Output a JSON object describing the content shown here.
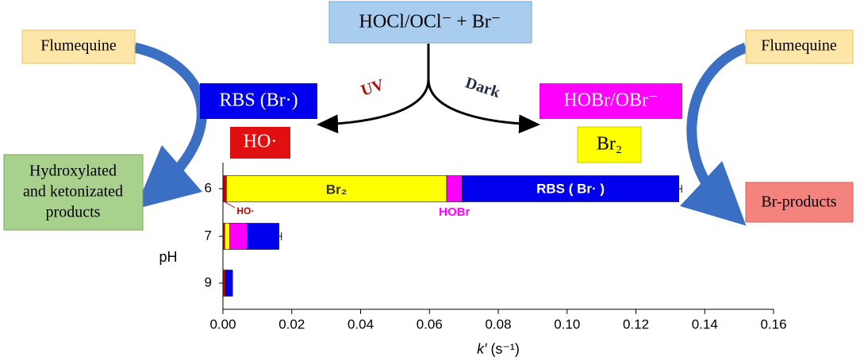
{
  "diagram": {
    "source": "HOCl/OCl⁻ + Br⁻",
    "flumequine_left": "Flumequine",
    "flumequine_right": "Flumequine",
    "rbs": "RBS (Br·)",
    "ho": "HO·",
    "hobr": "HOBr/OBr⁻",
    "br2": "Br₂",
    "uv": "UV",
    "dark": "Dark",
    "hydroxylated": [
      "Hydroxylated",
      "and ketonizated",
      "products"
    ],
    "br_products": "Br-products"
  },
  "chart_data": {
    "type": "bar",
    "orientation": "horizontal",
    "stacked": true,
    "ylabel": "pH",
    "xlabel": [
      "k′",
      " (s⁻¹)"
    ],
    "categories": [
      "6",
      "7",
      "9"
    ],
    "series": [
      {
        "color": "#c00000",
        "values": [
          0.001,
          0.0005,
          0.0008
        ]
      },
      {
        "color": "#ffff00",
        "values": [
          0.064,
          0.0015,
          0
        ]
      },
      {
        "color": "#ff00ff",
        "values": [
          0.0045,
          0.005,
          0
        ]
      },
      {
        "color": "#0000ee",
        "values": [
          0.063,
          0.0093,
          0.002
        ]
      }
    ],
    "errors": [
      0.0008,
      0.0007,
      null
    ],
    "xlim": [
      0,
      0.16
    ],
    "xticks": [
      {
        "value": 0,
        "label": "0.00"
      },
      {
        "value": 0.02,
        "label": "0.02"
      },
      {
        "value": 0.04,
        "label": "0.04"
      },
      {
        "value": 0.06,
        "label": "0.06"
      },
      {
        "value": 0.08,
        "label": "0.08"
      },
      {
        "value": 0.1,
        "label": "0.10"
      },
      {
        "value": 0.12,
        "label": "0.12"
      },
      {
        "value": 0.14,
        "label": "0.14"
      },
      {
        "value": 0.16,
        "label": "0.16"
      }
    ],
    "annotations": [
      {
        "text": "HO·",
        "color": "#c00000"
      },
      {
        "text": "Br₂",
        "color": "#333333"
      },
      {
        "text": "HOBr",
        "color": "#ff00ff"
      },
      {
        "text": "RBS ( Br·  )",
        "color": "#ffffff"
      }
    ]
  }
}
